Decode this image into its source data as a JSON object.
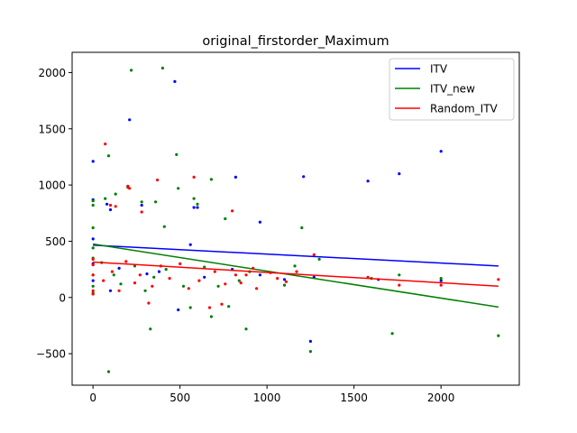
{
  "chart_data": {
    "type": "scatter",
    "title": "original_firstorder_Maximum",
    "xlabel": "",
    "ylabel": "",
    "xlim": [
      -120,
      2450
    ],
    "ylim": [
      -780,
      2180
    ],
    "xticks": [
      0,
      500,
      1000,
      1500,
      2000
    ],
    "yticks": [
      -500,
      0,
      500,
      1000,
      1500,
      2000
    ],
    "xtick_labels": [
      "0",
      "500",
      "1000",
      "1500",
      "2000"
    ],
    "ytick_labels": [
      "−500",
      "0",
      "500",
      "1000",
      "1500",
      "2000"
    ],
    "grid": false,
    "legend_position": "top-right",
    "series": [
      {
        "name": "ITV",
        "color": "#0000ff",
        "points": [
          [
            0,
            1210
          ],
          [
            0,
            870
          ],
          [
            0,
            520
          ],
          [
            0,
            300
          ],
          [
            0,
            150
          ],
          [
            80,
            830
          ],
          [
            100,
            780
          ],
          [
            210,
            1580
          ],
          [
            280,
            820
          ],
          [
            470,
            1920
          ],
          [
            490,
            -110
          ],
          [
            580,
            800
          ],
          [
            600,
            800
          ],
          [
            820,
            1070
          ],
          [
            960,
            670
          ],
          [
            1210,
            1075
          ],
          [
            1250,
            -390
          ],
          [
            1580,
            1035
          ],
          [
            1760,
            1100
          ],
          [
            2000,
            1300
          ],
          [
            100,
            60
          ],
          [
            150,
            260
          ],
          [
            310,
            210
          ],
          [
            380,
            230
          ],
          [
            560,
            470
          ],
          [
            640,
            180
          ],
          [
            800,
            250
          ],
          [
            960,
            200
          ],
          [
            1100,
            160
          ],
          [
            1270,
            180
          ],
          [
            1640,
            160
          ],
          [
            2000,
            150
          ]
        ],
        "fit": [
          [
            0,
            465
          ],
          [
            2330,
            280
          ]
        ]
      },
      {
        "name": "ITV_new",
        "color": "#008000",
        "points": [
          [
            0,
            860
          ],
          [
            0,
            820
          ],
          [
            0,
            620
          ],
          [
            0,
            440
          ],
          [
            0,
            350
          ],
          [
            0,
            200
          ],
          [
            0,
            100
          ],
          [
            0,
            40
          ],
          [
            70,
            880
          ],
          [
            90,
            1260
          ],
          [
            90,
            -660
          ],
          [
            130,
            920
          ],
          [
            200,
            980
          ],
          [
            220,
            2020
          ],
          [
            280,
            850
          ],
          [
            330,
            -280
          ],
          [
            360,
            850
          ],
          [
            400,
            2040
          ],
          [
            410,
            630
          ],
          [
            480,
            1270
          ],
          [
            490,
            970
          ],
          [
            560,
            -90
          ],
          [
            580,
            880
          ],
          [
            600,
            830
          ],
          [
            680,
            -170
          ],
          [
            680,
            1050
          ],
          [
            760,
            700
          ],
          [
            780,
            -80
          ],
          [
            880,
            -280
          ],
          [
            1200,
            620
          ],
          [
            1250,
            -480
          ],
          [
            1300,
            340
          ],
          [
            1720,
            -320
          ],
          [
            1760,
            200
          ],
          [
            2000,
            170
          ],
          [
            2330,
            -340
          ],
          [
            50,
            310
          ],
          [
            120,
            200
          ],
          [
            160,
            120
          ],
          [
            240,
            280
          ],
          [
            300,
            60
          ],
          [
            350,
            180
          ],
          [
            420,
            250
          ],
          [
            520,
            100
          ],
          [
            640,
            270
          ],
          [
            720,
            100
          ],
          [
            840,
            150
          ],
          [
            900,
            230
          ],
          [
            1100,
            110
          ],
          [
            1160,
            280
          ],
          [
            1600,
            170
          ]
        ],
        "fit": [
          [
            0,
            475
          ],
          [
            2330,
            -85
          ]
        ]
      },
      {
        "name": "Random_ITV",
        "color": "#ff0000",
        "points": [
          [
            0,
            340
          ],
          [
            0,
            290
          ],
          [
            0,
            200
          ],
          [
            0,
            60
          ],
          [
            0,
            30
          ],
          [
            70,
            1365
          ],
          [
            100,
            820
          ],
          [
            130,
            810
          ],
          [
            200,
            990
          ],
          [
            210,
            970
          ],
          [
            280,
            760
          ],
          [
            320,
            -50
          ],
          [
            370,
            1045
          ],
          [
            580,
            1070
          ],
          [
            670,
            -90
          ],
          [
            740,
            -60
          ],
          [
            800,
            770
          ],
          [
            820,
            200
          ],
          [
            920,
            260
          ],
          [
            940,
            80
          ],
          [
            1110,
            140
          ],
          [
            1170,
            230
          ],
          [
            1270,
            380
          ],
          [
            1580,
            180
          ],
          [
            1760,
            110
          ],
          [
            2000,
            110
          ],
          [
            2330,
            160
          ],
          [
            60,
            150
          ],
          [
            110,
            230
          ],
          [
            150,
            60
          ],
          [
            190,
            320
          ],
          [
            240,
            130
          ],
          [
            270,
            200
          ],
          [
            340,
            100
          ],
          [
            390,
            280
          ],
          [
            440,
            170
          ],
          [
            500,
            300
          ],
          [
            550,
            80
          ],
          [
            610,
            150
          ],
          [
            700,
            230
          ],
          [
            760,
            120
          ],
          [
            850,
            130
          ],
          [
            880,
            200
          ],
          [
            1020,
            220
          ],
          [
            1060,
            170
          ]
        ],
        "fit": [
          [
            0,
            315
          ],
          [
            2330,
            100
          ]
        ]
      }
    ]
  }
}
